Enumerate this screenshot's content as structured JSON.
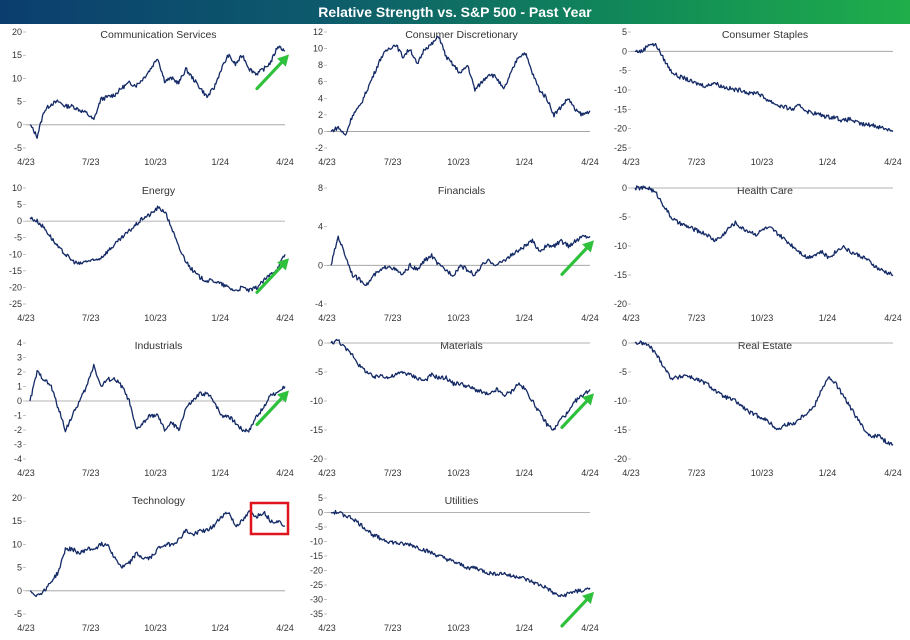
{
  "header": {
    "title": "Relative Strength vs. S&P 500 - Past Year"
  },
  "chart_data": [
    {
      "type": "line",
      "title": "Communication Services",
      "x_ticks": [
        "4/23",
        "7/23",
        "10/23",
        "1/24",
        "4/24"
      ],
      "y_ticks": [
        20,
        15,
        10,
        5,
        0,
        -5
      ],
      "ylim": [
        -5,
        20
      ],
      "series": [
        {
          "values": [
            0,
            -2.5,
            3,
            4.5,
            5,
            4,
            4,
            3.2,
            2.5,
            1,
            5.5,
            6,
            6.5,
            8,
            9,
            8.5,
            10,
            12,
            14.5,
            9.5,
            10,
            9,
            12,
            10,
            8,
            6,
            8,
            12,
            15,
            13,
            15,
            12,
            11,
            12,
            13.5,
            17,
            16
          ]
        }
      ],
      "annotations": [
        {
          "type": "arrow",
          "color": "#2fc03c",
          "direction": "up"
        }
      ]
    },
    {
      "type": "line",
      "title": "Consumer Discretionary",
      "x_ticks": [
        "4/23",
        "7/23",
        "10/23",
        "1/24",
        "4/24"
      ],
      "y_ticks": [
        12,
        10,
        8,
        6,
        4,
        2,
        0,
        -2
      ],
      "ylim": [
        -2,
        12
      ],
      "series": [
        {
          "values": [
            0,
            0.5,
            -0.5,
            2,
            3,
            5,
            7,
            9,
            10,
            10.5,
            9,
            10,
            8,
            10,
            10.5,
            11.5,
            9,
            8,
            7,
            8,
            5,
            6,
            7,
            6.5,
            5,
            7,
            9,
            9.5,
            7,
            5,
            4,
            2,
            3,
            4,
            2.5,
            2,
            2.5
          ]
        }
      ]
    },
    {
      "type": "line",
      "title": "Consumer Staples",
      "x_ticks": [
        "4/23",
        "7/23",
        "10/23",
        "1/24",
        "4/24"
      ],
      "y_ticks": [
        5,
        0,
        -5,
        -10,
        -15,
        -20,
        -25
      ],
      "ylim": [
        -25,
        5
      ],
      "series": [
        {
          "values": [
            0,
            0,
            2,
            1.5,
            -2,
            -5,
            -6.5,
            -7,
            -8,
            -8.5,
            -9,
            -8,
            -9,
            -9.5,
            -10,
            -10,
            -11,
            -10.5,
            -12,
            -13,
            -14,
            -14.5,
            -15,
            -14,
            -15.5,
            -16,
            -16.5,
            -17,
            -17,
            -18,
            -17.5,
            -18.5,
            -19,
            -19,
            -19.5,
            -20,
            -20.5
          ]
        }
      ]
    },
    {
      "type": "line",
      "title": "Energy",
      "x_ticks": [
        "4/23",
        "7/23",
        "10/23",
        "1/24",
        "4/24"
      ],
      "y_ticks": [
        10,
        5,
        0,
        -5,
        -10,
        -15,
        -20,
        -25
      ],
      "ylim": [
        -25,
        10
      ],
      "series": [
        {
          "values": [
            1,
            0,
            -2,
            -5,
            -8,
            -10,
            -12,
            -13,
            -12,
            -12,
            -11,
            -9,
            -7,
            -5,
            -3,
            -1,
            1,
            2,
            4,
            3,
            -2,
            -8,
            -12,
            -15,
            -17,
            -18,
            -18,
            -19,
            -20,
            -21,
            -20,
            -21,
            -20,
            -18,
            -16,
            -14,
            -10
          ]
        }
      ],
      "annotations": [
        {
          "type": "arrow",
          "color": "#2fc03c",
          "direction": "up"
        }
      ]
    },
    {
      "type": "line",
      "title": "Financials",
      "x_ticks": [
        "4/23",
        "7/23",
        "10/23",
        "1/24",
        "4/24"
      ],
      "y_ticks": [
        8,
        4,
        0,
        -4
      ],
      "ylim": [
        -4,
        8
      ],
      "series": [
        {
          "values": [
            0,
            3,
            1,
            -1,
            -1.5,
            -2,
            -1,
            -0.5,
            0,
            -0.5,
            -1,
            0,
            -0.5,
            0.5,
            1,
            0,
            -0.5,
            -1,
            0,
            -0.5,
            -1,
            0,
            0.5,
            0,
            0.5,
            1,
            1.5,
            2,
            2.5,
            1.5,
            2,
            2,
            2.5,
            2,
            2.5,
            3,
            3
          ]
        }
      ],
      "annotations": [
        {
          "type": "arrow",
          "color": "#2fc03c",
          "direction": "up"
        }
      ]
    },
    {
      "type": "line",
      "title": "Health Care",
      "x_ticks": [
        "4/23",
        "7/23",
        "10/23",
        "1/24",
        "4/24"
      ],
      "y_ticks": [
        0,
        -5,
        -10,
        -15,
        -20
      ],
      "ylim": [
        -20,
        0
      ],
      "series": [
        {
          "values": [
            0,
            0,
            0,
            -1,
            -3,
            -5,
            -6,
            -6.5,
            -7,
            -7.5,
            -8,
            -9,
            -8.5,
            -7,
            -6,
            -7,
            -7.5,
            -8,
            -7,
            -7,
            -8,
            -9,
            -10,
            -11,
            -12,
            -11.5,
            -11,
            -12,
            -11,
            -10,
            -11,
            -11.5,
            -12,
            -13,
            -14,
            -14.5,
            -15
          ]
        }
      ]
    },
    {
      "type": "line",
      "title": "Industrials",
      "x_ticks": [
        "4/23",
        "7/23",
        "10/23",
        "1/24",
        "4/24"
      ],
      "y_ticks": [
        4,
        3,
        2,
        1,
        0,
        -1,
        -2,
        -3,
        -4
      ],
      "ylim": [
        -4,
        4
      ],
      "series": [
        {
          "values": [
            0,
            2,
            1.5,
            1,
            -0.5,
            -2,
            -1,
            0,
            1,
            2.5,
            1,
            1.5,
            1.5,
            1,
            0,
            -2,
            -1.5,
            -1,
            -1,
            -2,
            -1.5,
            -2,
            -0.5,
            0,
            0.5,
            0.5,
            0,
            -1,
            -1,
            -1.5,
            -2,
            -2,
            -1,
            -0.5,
            0.5,
            0.5,
            1
          ]
        }
      ],
      "annotations": [
        {
          "type": "arrow",
          "color": "#2fc03c",
          "direction": "up"
        }
      ]
    },
    {
      "type": "line",
      "title": "Materials",
      "x_ticks": [
        "4/23",
        "7/23",
        "10/23",
        "1/24",
        "4/24"
      ],
      "y_ticks": [
        0,
        -5,
        -10,
        -15,
        -20
      ],
      "ylim": [
        -20,
        0
      ],
      "series": [
        {
          "values": [
            0,
            0.5,
            -1,
            -2,
            -4,
            -5,
            -6,
            -5.5,
            -6,
            -5.5,
            -5,
            -5.5,
            -6,
            -6.5,
            -5.5,
            -6,
            -6,
            -7,
            -7,
            -7.5,
            -8,
            -8.5,
            -9,
            -8,
            -9,
            -8.5,
            -7,
            -8,
            -10,
            -12,
            -14,
            -15,
            -13,
            -12,
            -10,
            -9,
            -8
          ]
        }
      ],
      "annotations": [
        {
          "type": "arrow",
          "color": "#2fc03c",
          "direction": "up"
        }
      ]
    },
    {
      "type": "line",
      "title": "Real Estate",
      "x_ticks": [
        "4/23",
        "7/23",
        "10/23",
        "1/24",
        "4/24"
      ],
      "y_ticks": [
        0,
        -5,
        -10,
        -15,
        -20
      ],
      "ylim": [
        -20,
        0
      ],
      "series": [
        {
          "values": [
            0,
            0,
            -0.5,
            -2,
            -4,
            -6,
            -6,
            -5.5,
            -6,
            -6.5,
            -7,
            -8,
            -9,
            -9.5,
            -10,
            -11,
            -12,
            -12.5,
            -13,
            -14,
            -15,
            -14,
            -14,
            -13,
            -12,
            -11,
            -8,
            -6,
            -7,
            -9,
            -11,
            -13,
            -15,
            -16,
            -16,
            -17,
            -17.5
          ]
        }
      ]
    },
    {
      "type": "line",
      "title": "Technology",
      "x_ticks": [
        "4/23",
        "7/23",
        "10/23",
        "1/24",
        "4/24"
      ],
      "y_ticks": [
        20,
        15,
        10,
        5,
        0,
        -5
      ],
      "ylim": [
        -5,
        20
      ],
      "series": [
        {
          "values": [
            0,
            -1,
            0,
            2,
            4,
            9,
            9,
            8,
            9,
            9,
            10,
            10,
            7,
            5,
            6,
            8,
            7,
            7,
            9,
            10,
            10,
            11,
            13,
            12,
            13,
            13,
            14,
            16,
            17,
            14,
            15,
            17,
            16,
            17,
            15,
            15,
            14
          ]
        }
      ],
      "annotations": [
        {
          "type": "box",
          "color": "#e0141e",
          "position": "last-months"
        }
      ]
    },
    {
      "type": "line",
      "title": "Utilities",
      "x_ticks": [
        "4/23",
        "7/23",
        "10/23",
        "1/24",
        "4/24"
      ],
      "y_ticks": [
        5,
        0,
        -5,
        -10,
        -15,
        -20,
        -25,
        -30,
        -35
      ],
      "ylim": [
        -35,
        5
      ],
      "series": [
        {
          "values": [
            0,
            0,
            -1,
            -2,
            -4,
            -6,
            -8,
            -9,
            -10,
            -10.5,
            -11,
            -11,
            -12,
            -13,
            -14,
            -15,
            -16,
            -17,
            -18,
            -19,
            -19,
            -20,
            -21,
            -21,
            -21,
            -22,
            -22,
            -23,
            -24,
            -25,
            -26,
            -28,
            -29,
            -28,
            -27,
            -27,
            -26
          ]
        }
      ],
      "annotations": [
        {
          "type": "arrow",
          "color": "#2fc03c",
          "direction": "up"
        }
      ]
    }
  ]
}
